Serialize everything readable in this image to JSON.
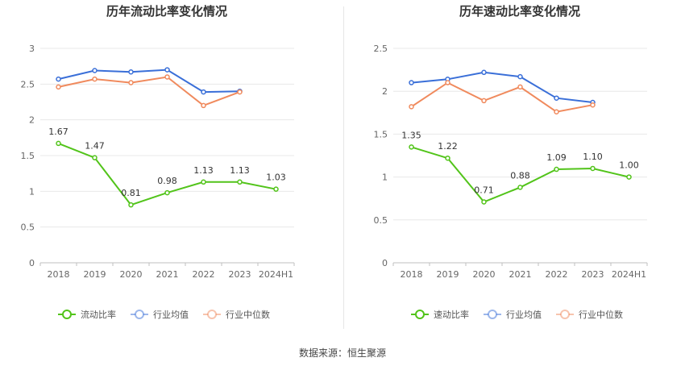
{
  "chart_data": [
    {
      "type": "line",
      "title": "历年流动比率变化情况",
      "categories": [
        "2018",
        "2019",
        "2020",
        "2021",
        "2022",
        "2023",
        "2024H1"
      ],
      "ylim": [
        0,
        3
      ],
      "yticks": [
        "0",
        "0.5",
        "1",
        "1.5",
        "2",
        "2.5",
        "3"
      ],
      "grid": true,
      "legend_position": "bottom",
      "series": [
        {
          "name": "流动比率",
          "color": "#52c41a",
          "values": [
            1.67,
            1.47,
            0.81,
            0.98,
            1.13,
            1.13,
            1.03
          ],
          "labels": [
            "1.67",
            "1.47",
            "0.81",
            "0.98",
            "1.13",
            "1.13",
            "1.03"
          ]
        },
        {
          "name": "行业均值",
          "color": "#3a6fd8",
          "values": [
            2.57,
            2.69,
            2.67,
            2.7,
            2.39,
            2.4,
            null
          ]
        },
        {
          "name": "行业中位数",
          "color": "#f08a5d",
          "values": [
            2.46,
            2.57,
            2.52,
            2.6,
            2.2,
            2.39,
            null
          ]
        }
      ]
    },
    {
      "type": "line",
      "title": "历年速动比率变化情况",
      "categories": [
        "2018",
        "2019",
        "2020",
        "2021",
        "2022",
        "2023",
        "2024H1"
      ],
      "ylim": [
        0,
        2.5
      ],
      "yticks": [
        "0",
        "0.5",
        "1",
        "1.5",
        "2",
        "2.5"
      ],
      "grid": true,
      "legend_position": "bottom",
      "series": [
        {
          "name": "速动比率",
          "color": "#52c41a",
          "values": [
            1.35,
            1.22,
            0.71,
            0.88,
            1.09,
            1.1,
            1.0
          ],
          "labels": [
            "1.35",
            "1.22",
            "0.71",
            "0.88",
            "1.09",
            "1.10",
            "1.00"
          ]
        },
        {
          "name": "行业均值",
          "color": "#3a6fd8",
          "values": [
            2.1,
            2.14,
            2.22,
            2.17,
            1.92,
            1.87,
            null
          ]
        },
        {
          "name": "行业中位数",
          "color": "#f08a5d",
          "values": [
            1.82,
            2.1,
            1.89,
            2.05,
            1.76,
            1.84,
            null
          ]
        }
      ]
    }
  ],
  "footer": {
    "source": "数据来源：恒生聚源"
  },
  "legend_icon": "circle-line-marker"
}
